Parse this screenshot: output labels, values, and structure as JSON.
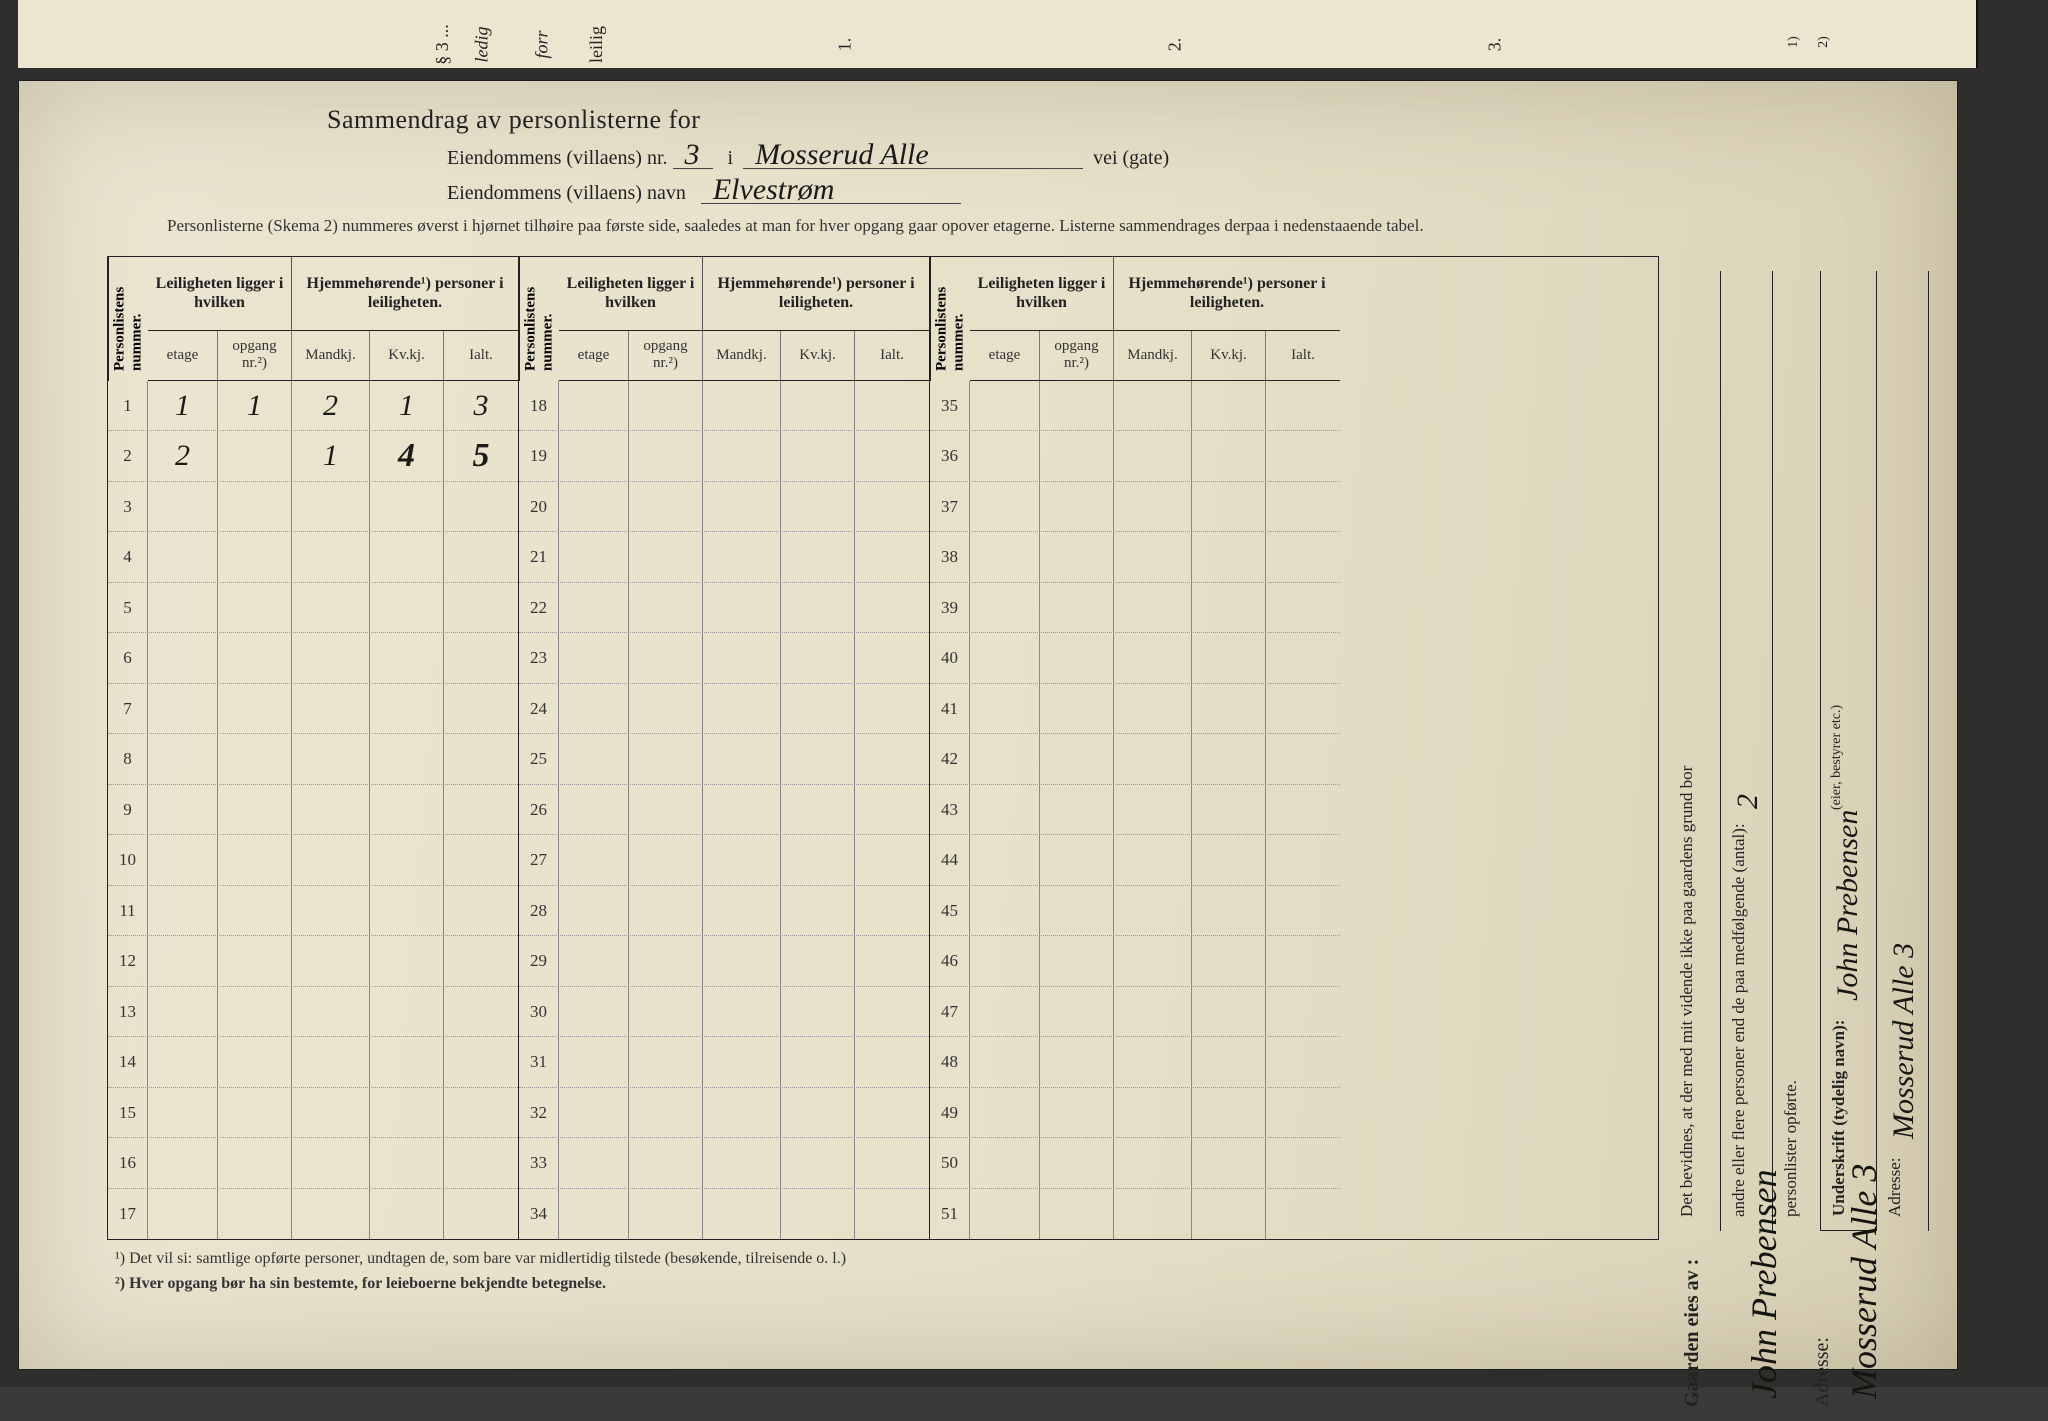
{
  "colors": {
    "paper": "#e9e2cb",
    "ink": "#222222",
    "handwriting": "#1a1a18",
    "border": "#333333"
  },
  "top_sliver_labels": [
    "§ 3 ...",
    "ledig",
    "forr",
    "leilig",
    "1.",
    "2.",
    "3.",
    "1)",
    "2)"
  ],
  "header": {
    "title": "Sammendrag av personlisterne for",
    "line2_prefix": "Eiendommens (villaens) nr.",
    "nr_value": "3",
    "i": "i",
    "street_value": "Mosserud Alle",
    "street_suffix": "vei  (gate)",
    "line3_prefix": "Eiendommens (villaens) navn",
    "name_value": "Elvestrøm",
    "instructions": "Personlisterne (Skema 2) nummeres øverst i hjørnet tilhøire paa første side, saaledes at man for hver opgang gaar opover etagerne.   Listerne sammendrages derpaa i nedenstaaende tabel."
  },
  "table": {
    "col_personlistens": "Personlistens nummer.",
    "grp_leil": "Leiligheten ligger i hvilken",
    "grp_hjem": "Hjemmehørende¹) personer i leiligheten.",
    "sub_etage": "etage",
    "sub_opgang": "opgang nr.²)",
    "sub_mandkj": "Mandkj.",
    "sub_kvkj": "Kv.kj.",
    "sub_ialt": "Ialt.",
    "blocks": [
      {
        "start": 1,
        "rows": [
          {
            "n": 1,
            "etage": "1",
            "opgang": "1",
            "mand": "2",
            "kv": "1",
            "ialt": "3"
          },
          {
            "n": 2,
            "etage": "2",
            "opgang": "",
            "mand": "1",
            "kv": "4",
            "ialt": "5"
          },
          {
            "n": 3
          },
          {
            "n": 4
          },
          {
            "n": 5
          },
          {
            "n": 6
          },
          {
            "n": 7
          },
          {
            "n": 8
          },
          {
            "n": 9
          },
          {
            "n": 10
          },
          {
            "n": 11
          },
          {
            "n": 12
          },
          {
            "n": 13
          },
          {
            "n": 14
          },
          {
            "n": 15
          },
          {
            "n": 16
          },
          {
            "n": 17
          }
        ]
      },
      {
        "start": 18,
        "rows": [
          {
            "n": 18
          },
          {
            "n": 19
          },
          {
            "n": 20
          },
          {
            "n": 21
          },
          {
            "n": 22
          },
          {
            "n": 23
          },
          {
            "n": 24
          },
          {
            "n": 25
          },
          {
            "n": 26
          },
          {
            "n": 27
          },
          {
            "n": 28
          },
          {
            "n": 29
          },
          {
            "n": 30
          },
          {
            "n": 31
          },
          {
            "n": 32
          },
          {
            "n": 33
          },
          {
            "n": 34
          }
        ]
      },
      {
        "start": 35,
        "rows": [
          {
            "n": 35
          },
          {
            "n": 36
          },
          {
            "n": 37
          },
          {
            "n": 38
          },
          {
            "n": 39
          },
          {
            "n": 40
          },
          {
            "n": 41
          },
          {
            "n": 42
          },
          {
            "n": 43
          },
          {
            "n": 44
          },
          {
            "n": 45
          },
          {
            "n": 46
          },
          {
            "n": 47
          },
          {
            "n": 48
          },
          {
            "n": 49
          },
          {
            "n": 50
          },
          {
            "n": 51
          }
        ]
      }
    ]
  },
  "footnotes": {
    "fn1": "¹) Det vil si: samtlige opførte personer, undtagen de, som bare var midlertidig tilstede (besøkende, tilreisende o. l.)",
    "fn2": "²) Hver opgang bør ha sin bestemte, for leieboerne bekjendte betegnelse."
  },
  "right_panel": {
    "attest_line1": "Det bevidnes, at der med mit vidende ikke paa gaardens grund bor",
    "attest_line2": "andre eller flere personer end de paa medfølgende (antal):",
    "attest_count": "2",
    "attest_line3": "personlister opførte.",
    "underskrift_label": "Underskrift (tydelig navn):",
    "underskrift_value": "John Prebensen",
    "eier_note": "(eier, bestyrer etc.)",
    "adresse_label": "Adresse:",
    "adresse_value": "Mosserud Alle 3"
  },
  "owner_block": {
    "label": "Gaarden eies av :",
    "name": "John Prebensen",
    "adresse_label": "Adresse:",
    "adresse_value": "Mosserud Alle 3"
  }
}
